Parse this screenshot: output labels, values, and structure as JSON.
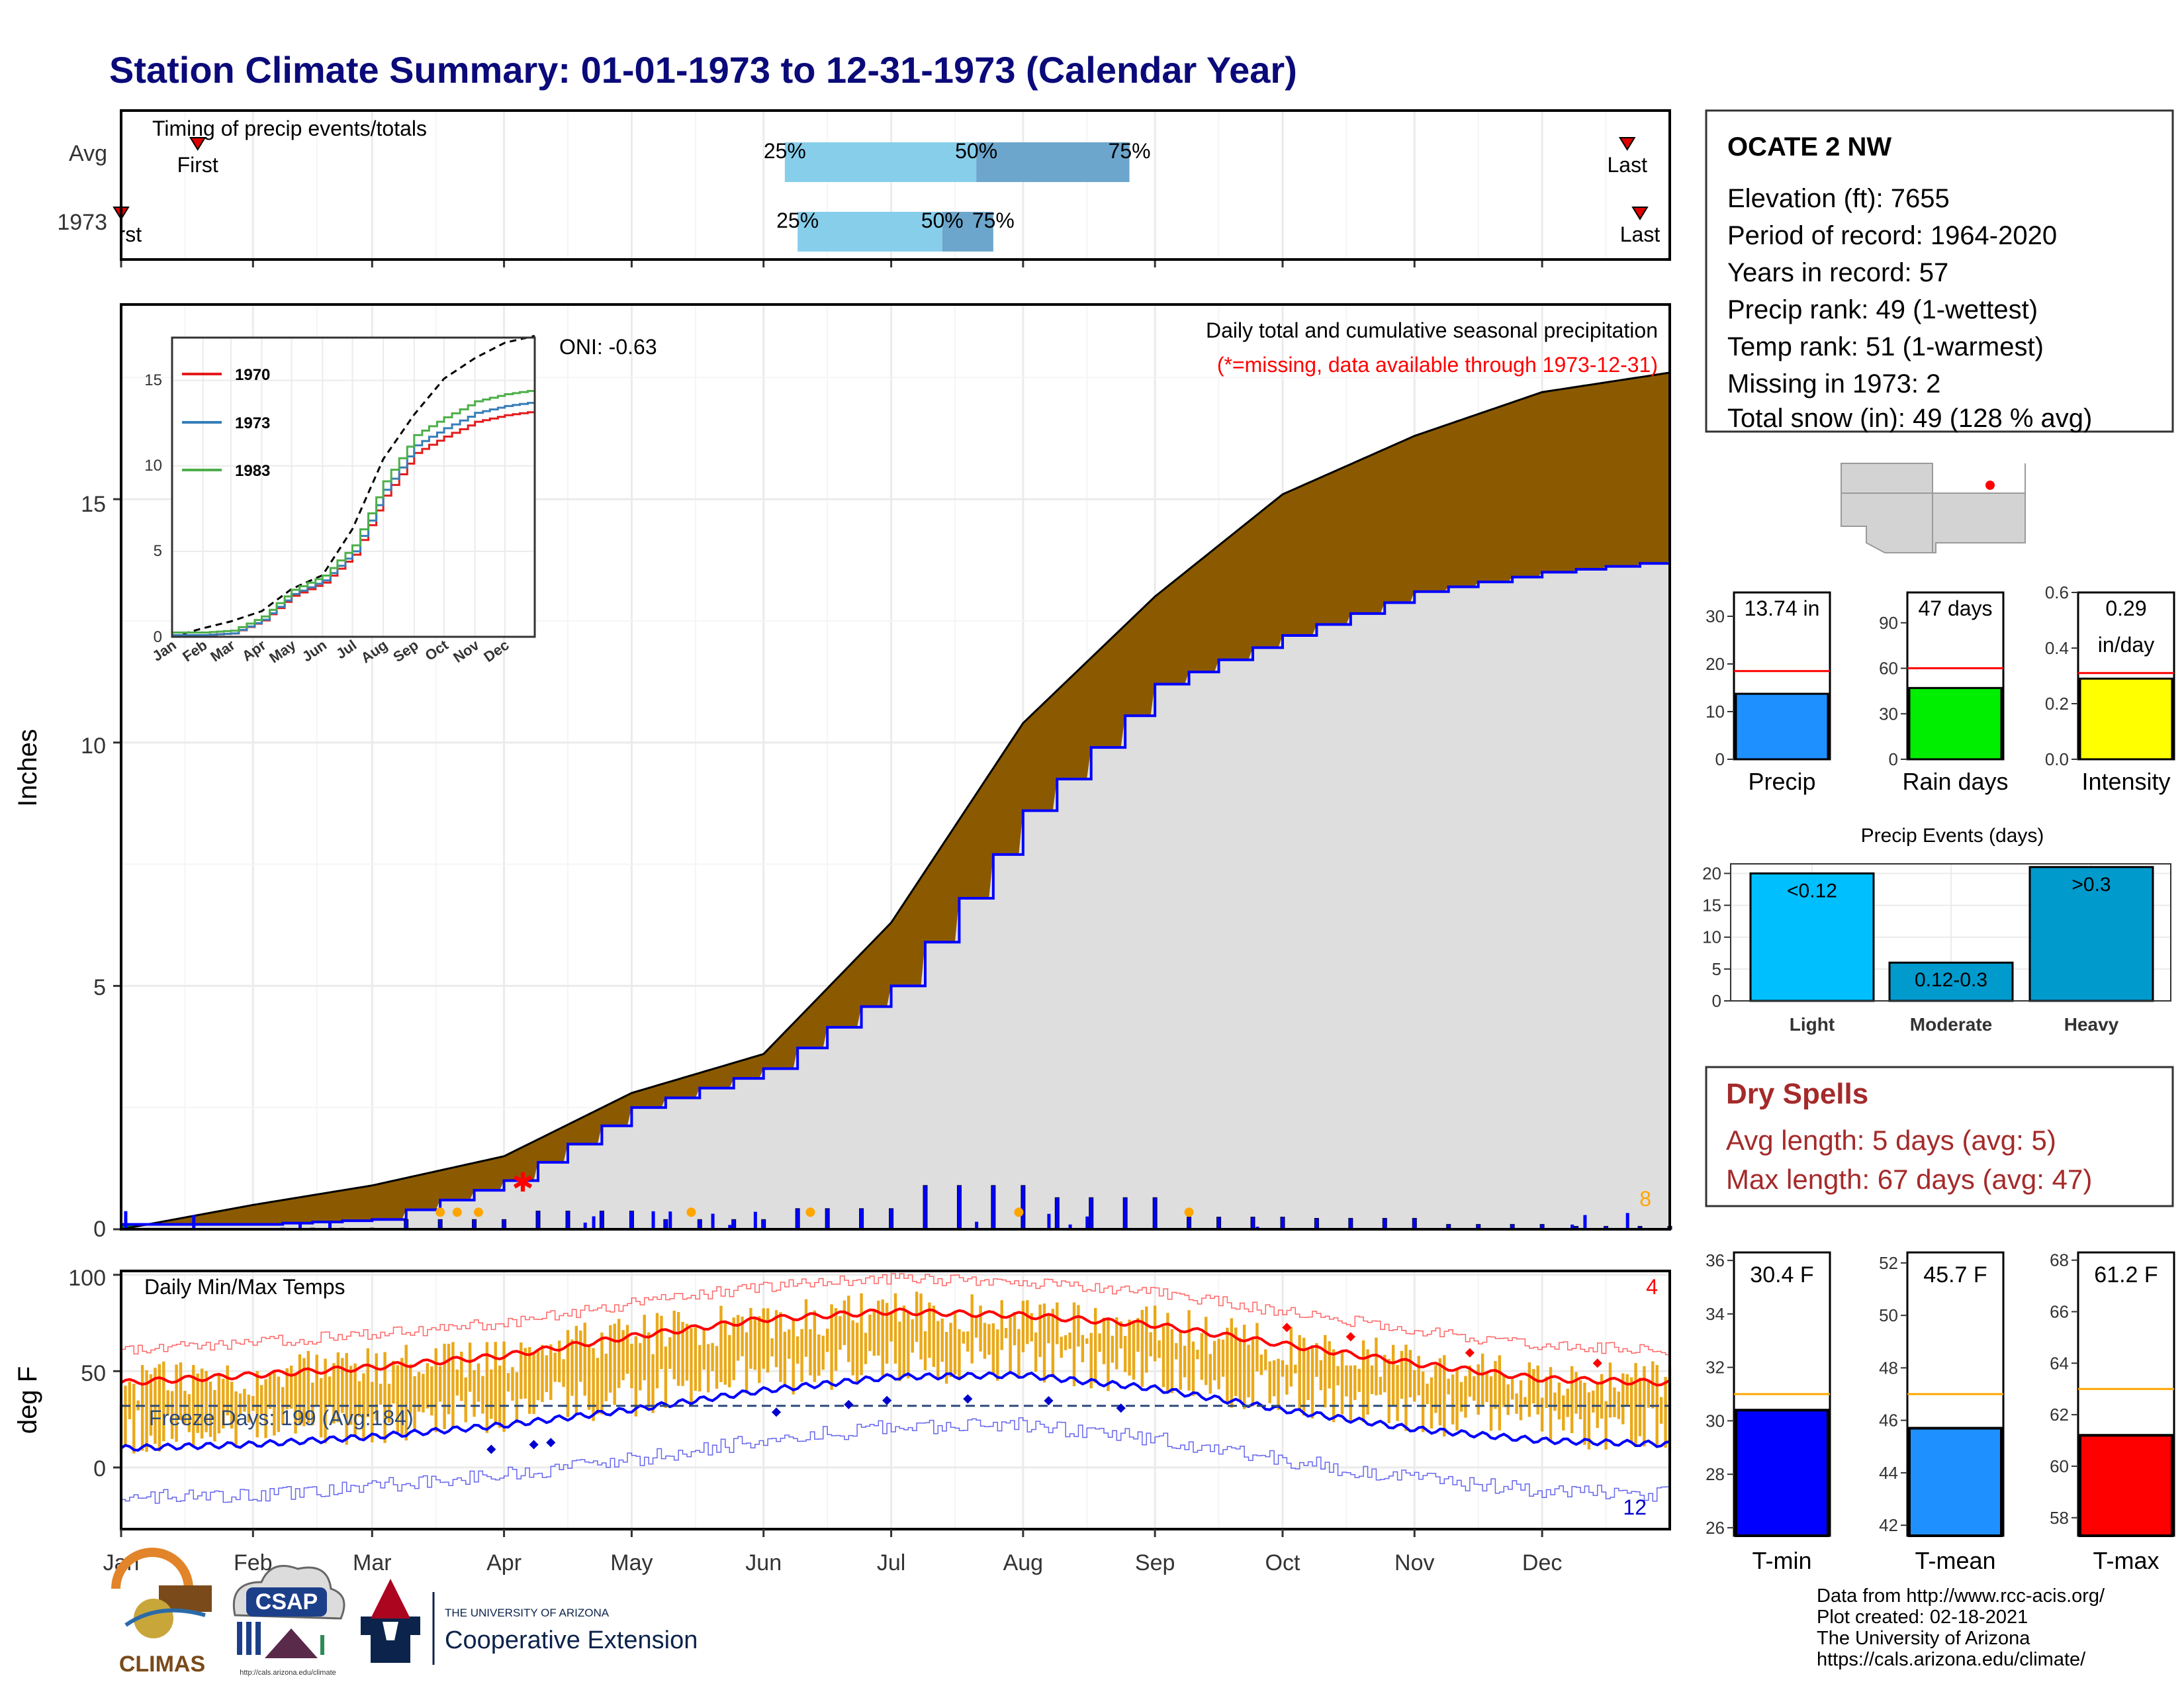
{
  "header": {
    "title": "Station Climate Summary: 01-01-1973 to 12-31-1973 (Calendar Year)"
  },
  "timing_panel": {
    "label": "Timing of precip events/totals",
    "rows": [
      {
        "name": "Avg",
        "first_label": "First",
        "last_label": "Last",
        "first_day": 19,
        "last_day": 355,
        "p25": 157,
        "p50": 202,
        "p75": 238
      },
      {
        "name": "1973",
        "first_label": "First",
        "last_label": "Last",
        "first_day": 1,
        "last_day": 358,
        "p25": 160,
        "p50": 194,
        "p75": 206
      }
    ],
    "pct_labels": [
      "25%",
      "50%",
      "75%"
    ]
  },
  "month_labels": [
    "Jan",
    "Feb",
    "Mar",
    "Apr",
    "May",
    "Jun",
    "Jul",
    "Aug",
    "Sep",
    "Oct",
    "Nov",
    "Dec"
  ],
  "precip_panel": {
    "ylabel": "Inches",
    "y_ticks": [
      "0",
      "5",
      "10",
      "15"
    ],
    "caption": "Daily total and cumulative seasonal precipitation",
    "missing_note": "(*=missing, data available through 1973-12-31)",
    "oni": "ONI: -0.63",
    "right_count": "8"
  },
  "inset": {
    "x_labels": [
      "Jan",
      "Feb",
      "Mar",
      "Apr",
      "May",
      "Jun",
      "Jul",
      "Aug",
      "Sep",
      "Oct",
      "Nov",
      "Dec"
    ],
    "y_ticks": [
      "0",
      "5",
      "10",
      "15"
    ],
    "legend": [
      {
        "label": "1970",
        "color": "#e41a1c"
      },
      {
        "label": "1973",
        "color": "#377eb8"
      },
      {
        "label": "1983",
        "color": "#4daf4a"
      }
    ]
  },
  "temp_panel": {
    "ylabel": "deg F",
    "y_ticks": [
      "0",
      "50",
      "100"
    ],
    "caption": "Daily Min/Max Temps",
    "freeze": "Freeze Days: 199 (Avg:184)",
    "hot_count": "4",
    "cold_count": "12"
  },
  "station": {
    "name": "OCATE 2 NW",
    "lines": [
      "Elevation (ft): 7655",
      "Period of record: 1964-2020",
      "Years in record: 57",
      "Precip rank: 49 (1-wettest)",
      "Temp rank: 51 (1-warmest)",
      "Missing in 1973: 2",
      "Total snow (in): 49 (128 % avg)"
    ]
  },
  "mini_bars": [
    {
      "name": "Precip",
      "label": "13.74 in",
      "value": 13.74,
      "avg": 18.5,
      "ymax": 35,
      "ticks": [
        "0",
        "10",
        "20",
        "30"
      ],
      "color": "#1e90ff"
    },
    {
      "name": "Rain days",
      "label": "47 days",
      "value": 47,
      "avg": 60,
      "ymax": 110,
      "ticks": [
        "0",
        "30",
        "60",
        "90"
      ],
      "color": "#00ee00"
    },
    {
      "name": "Intensity",
      "label": "0.29",
      "label2": "in/day",
      "value": 0.29,
      "avg": 0.31,
      "ymax": 0.6,
      "ticks": [
        "0.0",
        "0.2",
        "0.4",
        "0.6"
      ],
      "color": "#ffff00"
    }
  ],
  "events": {
    "title": "Precip Events (days)",
    "categories": [
      "Light",
      "Moderate",
      "Heavy"
    ],
    "labels": [
      "<0.12",
      "0.12-0.3",
      ">0.3"
    ],
    "values": [
      20,
      6,
      21
    ],
    "y_ticks": [
      "0",
      "5",
      "10",
      "15",
      "20"
    ],
    "colors": [
      "#00bfff",
      "#009acd",
      "#009acd"
    ]
  },
  "dry_spells": {
    "title": "Dry Spells",
    "avg": "Avg length: 5 days (avg: 5)",
    "max": "Max length: 67 days (avg: 47)"
  },
  "temp_bars": [
    {
      "name": "T-min",
      "label": "30.4 F",
      "value": 30.4,
      "avg": 31.0,
      "ymin": 25.7,
      "ymax": 36.3,
      "ticks": [
        "26",
        "28",
        "30",
        "32",
        "34",
        "36"
      ],
      "color": "#0000ff"
    },
    {
      "name": "T-mean",
      "label": "45.7 F",
      "value": 45.7,
      "avg": 47.0,
      "ymin": 41.6,
      "ymax": 52.4,
      "ticks": [
        "42",
        "44",
        "46",
        "48",
        "50",
        "52"
      ],
      "color": "#1e90ff"
    },
    {
      "name": "T-max",
      "label": "61.2 F",
      "value": 61.2,
      "avg": 63.0,
      "ymin": 57.3,
      "ymax": 68.3,
      "ticks": [
        "58",
        "60",
        "62",
        "64",
        "66",
        "68"
      ],
      "color": "#ff0000"
    }
  ],
  "footer": {
    "lines": [
      "Data from http://www.rcc-acis.org/",
      "Plot created: 02-18-2021",
      "The University of Arizona",
      "https://cals.arizona.edu/climate/"
    ],
    "logos": {
      "climas": "CLIMAS",
      "csap": "CSAP",
      "csap_url": "http://cals.arizona.edu/climate",
      "ua_small": "THE UNIVERSITY OF ARIZONA",
      "ua_big": "Cooperative Extension"
    }
  },
  "chart_data": [
    {
      "type": "area",
      "title": "Daily total and cumulative seasonal precipitation",
      "ylabel": "Inches",
      "ylim": [
        0,
        19
      ],
      "x": [
        "Jan",
        "Feb",
        "Mar",
        "Apr",
        "May",
        "Jun",
        "Jul",
        "Aug",
        "Sep",
        "Oct",
        "Nov",
        "Dec",
        "Dec 31"
      ],
      "series": [
        {
          "values": [
            0.0,
            0.5,
            0.9,
            1.5,
            2.8,
            3.6,
            6.3,
            10.4,
            13.0,
            15.1,
            16.3,
            17.2,
            17.6
          ]
        },
        {
          "values": [
            0.1,
            0.1,
            0.2,
            1.0,
            2.5,
            3.3,
            5.0,
            8.6,
            11.2,
            12.2,
            13.1,
            13.5,
            13.74
          ]
        }
      ]
    },
    {
      "type": "line",
      "title": "Daily Min/Max Temps",
      "ylabel": "deg F",
      "ylim": [
        -32,
        102
      ],
      "x": [
        "Jan",
        "Feb",
        "Mar",
        "Apr",
        "May",
        "Jun",
        "Jul",
        "Aug",
        "Sep",
        "Oct",
        "Nov",
        "Dec",
        "Dec 31"
      ],
      "series": [
        {
          "values": [
            44,
            48,
            52,
            58,
            68,
            77,
            81,
            79,
            74,
            64,
            54,
            46,
            44
          ]
        },
        {
          "values": [
            10,
            12,
            16,
            22,
            30,
            40,
            47,
            48,
            41,
            30,
            20,
            14,
            12
          ]
        }
      ]
    },
    {
      "type": "bar",
      "title": "Precip Events (days)",
      "categories": [
        "Light",
        "Moderate",
        "Heavy"
      ],
      "values": [
        20,
        6,
        21
      ]
    }
  ]
}
